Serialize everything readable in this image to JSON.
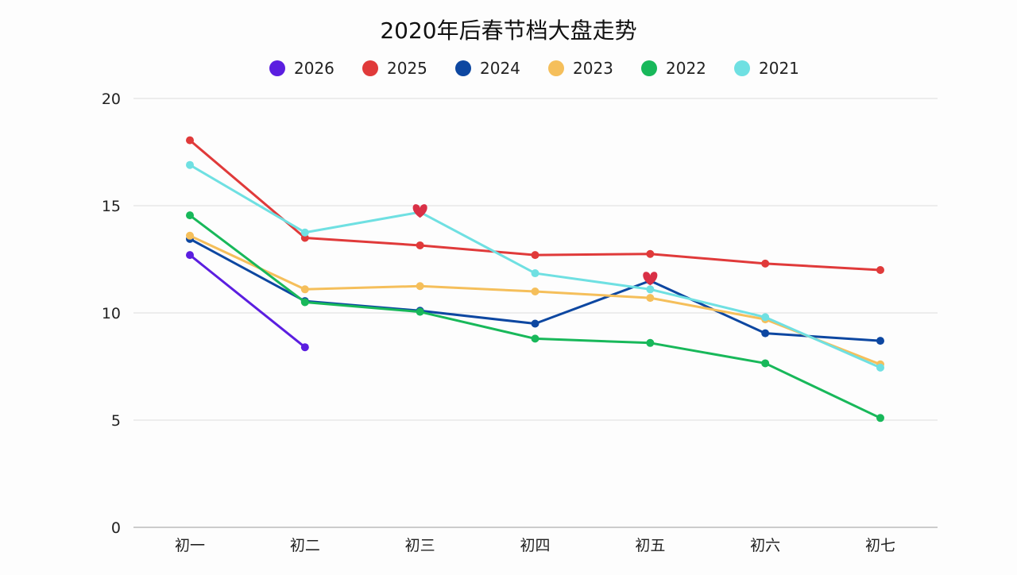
{
  "chart_data": {
    "type": "line",
    "title": "2020年后春节档大盘走势",
    "categories": [
      "初一",
      "初二",
      "初三",
      "初四",
      "初五",
      "初六",
      "初七"
    ],
    "ylim": [
      0,
      20
    ],
    "yticks": [
      0,
      5,
      10,
      15,
      20
    ],
    "grid": true,
    "legend_position": "top-center",
    "series": [
      {
        "name": "2026",
        "color": "#5b1ee0",
        "values": [
          12.7,
          8.4,
          null,
          null,
          null,
          null,
          null
        ]
      },
      {
        "name": "2025",
        "color": "#e03a3a",
        "values": [
          18.05,
          13.5,
          13.15,
          12.7,
          12.75,
          12.3,
          12.0
        ]
      },
      {
        "name": "2024",
        "color": "#0d47a1",
        "values": [
          13.45,
          10.55,
          10.1,
          9.5,
          11.5,
          9.05,
          8.7
        ]
      },
      {
        "name": "2023",
        "color": "#f5bf5b",
        "values": [
          13.6,
          11.1,
          11.25,
          11.0,
          10.7,
          9.7,
          7.6
        ]
      },
      {
        "name": "2022",
        "color": "#18b85a",
        "values": [
          14.55,
          10.5,
          10.05,
          8.8,
          8.6,
          7.65,
          5.1
        ]
      },
      {
        "name": "2021",
        "color": "#6fe0e2",
        "values": [
          16.9,
          13.75,
          14.7,
          11.85,
          11.1,
          9.8,
          7.45
        ]
      }
    ],
    "annotations": [
      {
        "type": "heart-marker",
        "category": "初三",
        "value": 14.75,
        "color": "#d93046"
      },
      {
        "type": "heart-marker",
        "category": "初五",
        "value": 11.6,
        "color": "#d93046"
      }
    ]
  }
}
